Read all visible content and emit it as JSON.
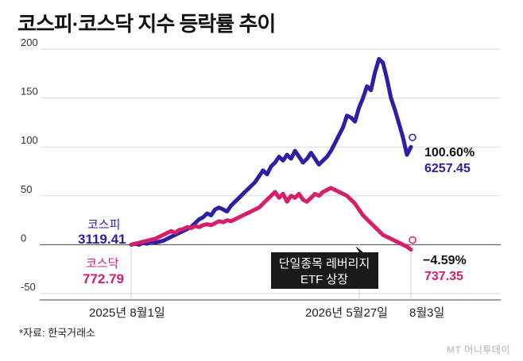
{
  "title": "코스피·코스닥 지수 등락률 추이",
  "source": "*자료: 한국거래소",
  "logo": "MT 머니투데이",
  "chart_data": {
    "type": "line",
    "ylim": [
      -50,
      200
    ],
    "yticks": [
      "200",
      "150",
      "100",
      "50",
      "0",
      "-50"
    ],
    "x_ticks": [
      "2025년 8월1일",
      "2026년 5월27일",
      "8월3일"
    ],
    "grid": true,
    "series": [
      {
        "name": "코스피",
        "color": "#2a1fa6",
        "start_value_label": "3119.41",
        "end_pct_label": "100.60%",
        "end_value_label": "6257.45",
        "values": [
          0,
          1,
          0,
          2,
          1,
          3,
          2,
          3,
          4,
          6,
          8,
          10,
          12,
          14,
          16,
          18,
          22,
          26,
          28,
          32,
          30,
          36,
          38,
          36,
          34,
          40,
          44,
          48,
          52,
          56,
          60,
          64,
          70,
          76,
          72,
          80,
          84,
          90,
          86,
          92,
          88,
          96,
          90,
          84,
          88,
          94,
          88,
          82,
          86,
          90,
          96,
          104,
          112,
          120,
          132,
          130,
          126,
          140,
          150,
          162,
          158,
          176,
          190,
          186,
          170,
          150,
          138,
          124,
          110,
          92,
          100
        ]
      },
      {
        "name": "코스닥",
        "color": "#d81e6b",
        "start_value_label": "772.79",
        "end_pct_label": "−4.59%",
        "end_value_label": "737.35",
        "values": [
          0,
          1,
          2,
          3,
          4,
          5,
          6,
          8,
          10,
          12,
          14,
          12,
          15,
          16,
          18,
          17,
          19,
          18,
          20,
          21,
          20,
          22,
          24,
          23,
          25,
          24,
          26,
          28,
          30,
          32,
          34,
          36,
          38,
          42,
          46,
          50,
          54,
          48,
          52,
          44,
          50,
          48,
          52,
          46,
          44,
          48,
          52,
          50,
          54,
          56,
          58,
          56,
          54,
          52,
          50,
          46,
          42,
          36,
          30,
          26,
          22,
          18,
          14,
          10,
          8,
          6,
          4,
          2,
          0,
          -2,
          -5
        ]
      }
    ],
    "annotation": {
      "text_line1": "단일종목 레버리지",
      "text_line2": "ETF 상장"
    }
  }
}
